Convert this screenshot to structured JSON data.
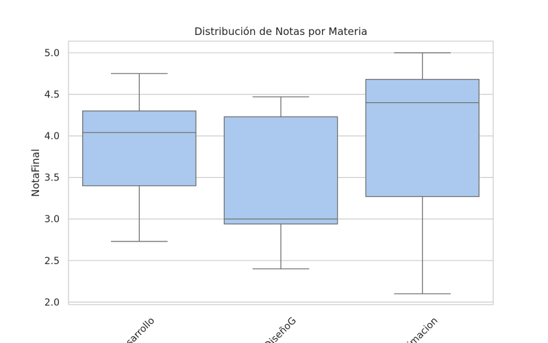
{
  "chart_data": {
    "type": "box",
    "title": "Distribución de Notas por Materia",
    "xlabel": "",
    "ylabel": "NotaFinal",
    "ylim": [
      1.97,
      5.14
    ],
    "yticks": [
      "2.0",
      "2.5",
      "3.0",
      "3.5",
      "4.0",
      "4.5",
      "5.0"
    ],
    "categories": [
      "Desarrollo",
      "DiseñoG",
      "Animacion"
    ],
    "visible_category_labels": [
      "sarrollo",
      "DiseñoG",
      "imacion"
    ],
    "boxes": [
      {
        "category": "Desarrollo",
        "min": 2.73,
        "q1": 3.4,
        "median": 4.04,
        "q3": 4.3,
        "max": 4.75
      },
      {
        "category": "DiseñoG",
        "min": 2.4,
        "q1": 2.94,
        "median": 3.0,
        "q3": 4.23,
        "max": 4.47
      },
      {
        "category": "Animacion",
        "min": 2.1,
        "q1": 3.27,
        "median": 4.4,
        "q3": 4.68,
        "max": 5.0
      }
    ],
    "grid": true,
    "box_color": "#abc9ee",
    "line_color": "#707070",
    "grid_color": "#cccccc",
    "frame_color": "#cccccc"
  }
}
